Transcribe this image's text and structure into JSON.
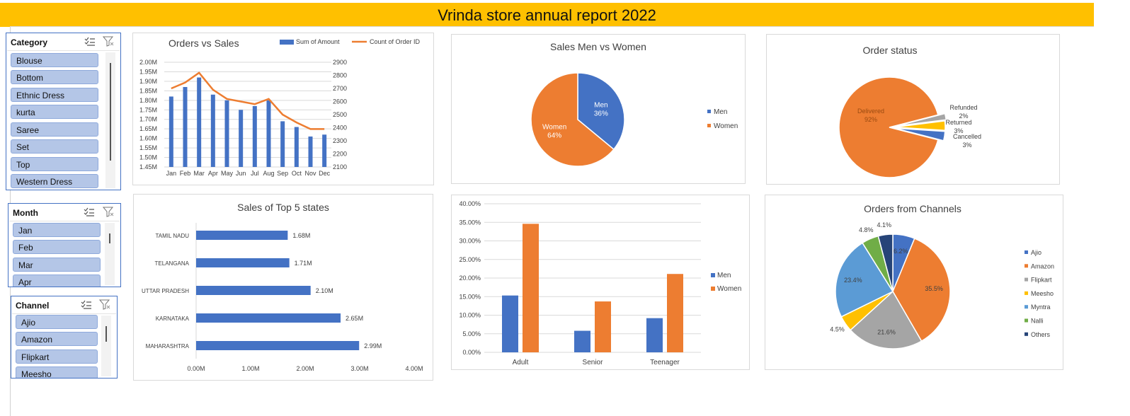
{
  "title": "Vrinda store annual report 2022",
  "slicers": {
    "category": {
      "header": "Category",
      "items": [
        "Blouse",
        "Bottom",
        "Ethnic Dress",
        "kurta",
        "Saree",
        "Set",
        "Top",
        "Western Dress"
      ]
    },
    "month": {
      "header": "Month",
      "items": [
        "Jan",
        "Feb",
        "Mar",
        "Apr"
      ]
    },
    "channel": {
      "header": "Channel",
      "items": [
        "Ajio",
        "Amazon",
        "Flipkart",
        "Meesho"
      ]
    }
  },
  "chart_data": [
    {
      "id": "orders-vs-sales",
      "type": "bar",
      "title": "Orders vs Sales",
      "categories": [
        "Jan",
        "Feb",
        "Mar",
        "Apr",
        "May",
        "Jun",
        "Jul",
        "Aug",
        "Sep",
        "Oct",
        "Nov",
        "Dec"
      ],
      "series": [
        {
          "name": "Sum of Amount",
          "type": "bar",
          "axis": "left",
          "values": [
            1.82,
            1.87,
            1.92,
            1.83,
            1.8,
            1.75,
            1.77,
            1.8,
            1.69,
            1.66,
            1.61,
            1.62
          ]
        },
        {
          "name": "Count of Order ID",
          "type": "line",
          "axis": "right",
          "values": [
            2700,
            2745,
            2820,
            2690,
            2620,
            2600,
            2580,
            2620,
            2500,
            2440,
            2390,
            2390
          ]
        }
      ],
      "y_left": {
        "min": 1.45,
        "max": 2.0,
        "step": 0.05,
        "labels": [
          "2.00M",
          "1.95M",
          "1.90M",
          "1.85M",
          "1.80M",
          "1.75M",
          "1.70M",
          "1.65M",
          "1.60M",
          "1.55M",
          "1.50M",
          "1.45M"
        ]
      },
      "y_right": {
        "min": 2100,
        "max": 2900,
        "step": 100,
        "labels": [
          "2900",
          "2800",
          "2700",
          "2600",
          "2500",
          "2400",
          "2300",
          "2200",
          "2100"
        ]
      },
      "legend": "top-right",
      "colors": {
        "bar": "#4472c4",
        "line": "#ed7d31"
      }
    },
    {
      "id": "sales-men-women",
      "type": "pie",
      "title": "Sales Men vs Women",
      "slices": [
        {
          "label": "Men",
          "value": 36,
          "text": "36%",
          "color": "#4472c4"
        },
        {
          "label": "Women",
          "value": 64,
          "text": "64%",
          "color": "#ed7d31"
        }
      ],
      "legend": "right"
    },
    {
      "id": "order-status",
      "type": "pie",
      "title": "Order status",
      "slices": [
        {
          "label": "Delivered",
          "value": 92,
          "text": "92%",
          "color": "#ed7d31"
        },
        {
          "label": "Refunded",
          "value": 2,
          "text": "2%",
          "color": "#a5a5a5"
        },
        {
          "label": "Returned",
          "value": 3,
          "text": "3%",
          "color": "#ffc000"
        },
        {
          "label": "Cancelled",
          "value": 3,
          "text": "3%",
          "color": "#4472c4"
        }
      ]
    },
    {
      "id": "top5-states",
      "type": "bar",
      "orientation": "horizontal",
      "title": "Sales of Top 5 states",
      "categories": [
        "TAMIL NADU",
        "TELANGANA",
        "UTTAR PRADESH",
        "KARNATAKA",
        "MAHARASHTRA"
      ],
      "values": [
        1.68,
        1.71,
        2.1,
        2.65,
        2.99
      ],
      "value_labels": [
        "1.68M",
        "1.71M",
        "2.10M",
        "2.65M",
        "2.99M"
      ],
      "x_axis": {
        "min": 0,
        "max": 4,
        "labels": [
          "0.00M",
          "1.00M",
          "2.00M",
          "3.00M",
          "4.00M"
        ]
      },
      "color": "#4472c4"
    },
    {
      "id": "age-gender",
      "type": "bar",
      "title": "",
      "categories": [
        "Adult",
        "Senior",
        "Teenager"
      ],
      "series": [
        {
          "name": "Men",
          "values": [
            15.3,
            5.8,
            9.2
          ],
          "color": "#4472c4"
        },
        {
          "name": "Women",
          "values": [
            34.6,
            13.7,
            21.1
          ],
          "color": "#ed7d31"
        }
      ],
      "y_axis": {
        "min": 0,
        "max": 40,
        "labels": [
          "40.00%",
          "35.00%",
          "30.00%",
          "25.00%",
          "20.00%",
          "15.00%",
          "10.00%",
          "5.00%",
          "0.00%"
        ]
      },
      "legend": "right"
    },
    {
      "id": "orders-channels",
      "type": "pie",
      "title": "Orders from Channels",
      "slices": [
        {
          "label": "Ajio",
          "value": 6.2,
          "text": "6.2%",
          "color": "#4472c4"
        },
        {
          "label": "Amazon",
          "value": 35.5,
          "text": "35.5%",
          "color": "#ed7d31"
        },
        {
          "label": "Flipkart",
          "value": 21.6,
          "text": "21.6%",
          "color": "#a5a5a5"
        },
        {
          "label": "Meesho",
          "value": 4.5,
          "text": "4.5%",
          "color": "#ffc000"
        },
        {
          "label": "Myntra",
          "value": 23.4,
          "text": "23.4%",
          "color": "#5b9bd5"
        },
        {
          "label": "Nalli",
          "value": 4.8,
          "text": "4.8%",
          "color": "#70ad47"
        },
        {
          "label": "Others",
          "value": 4.1,
          "text": "4.1%",
          "color": "#264478"
        }
      ],
      "legend": "right"
    }
  ]
}
